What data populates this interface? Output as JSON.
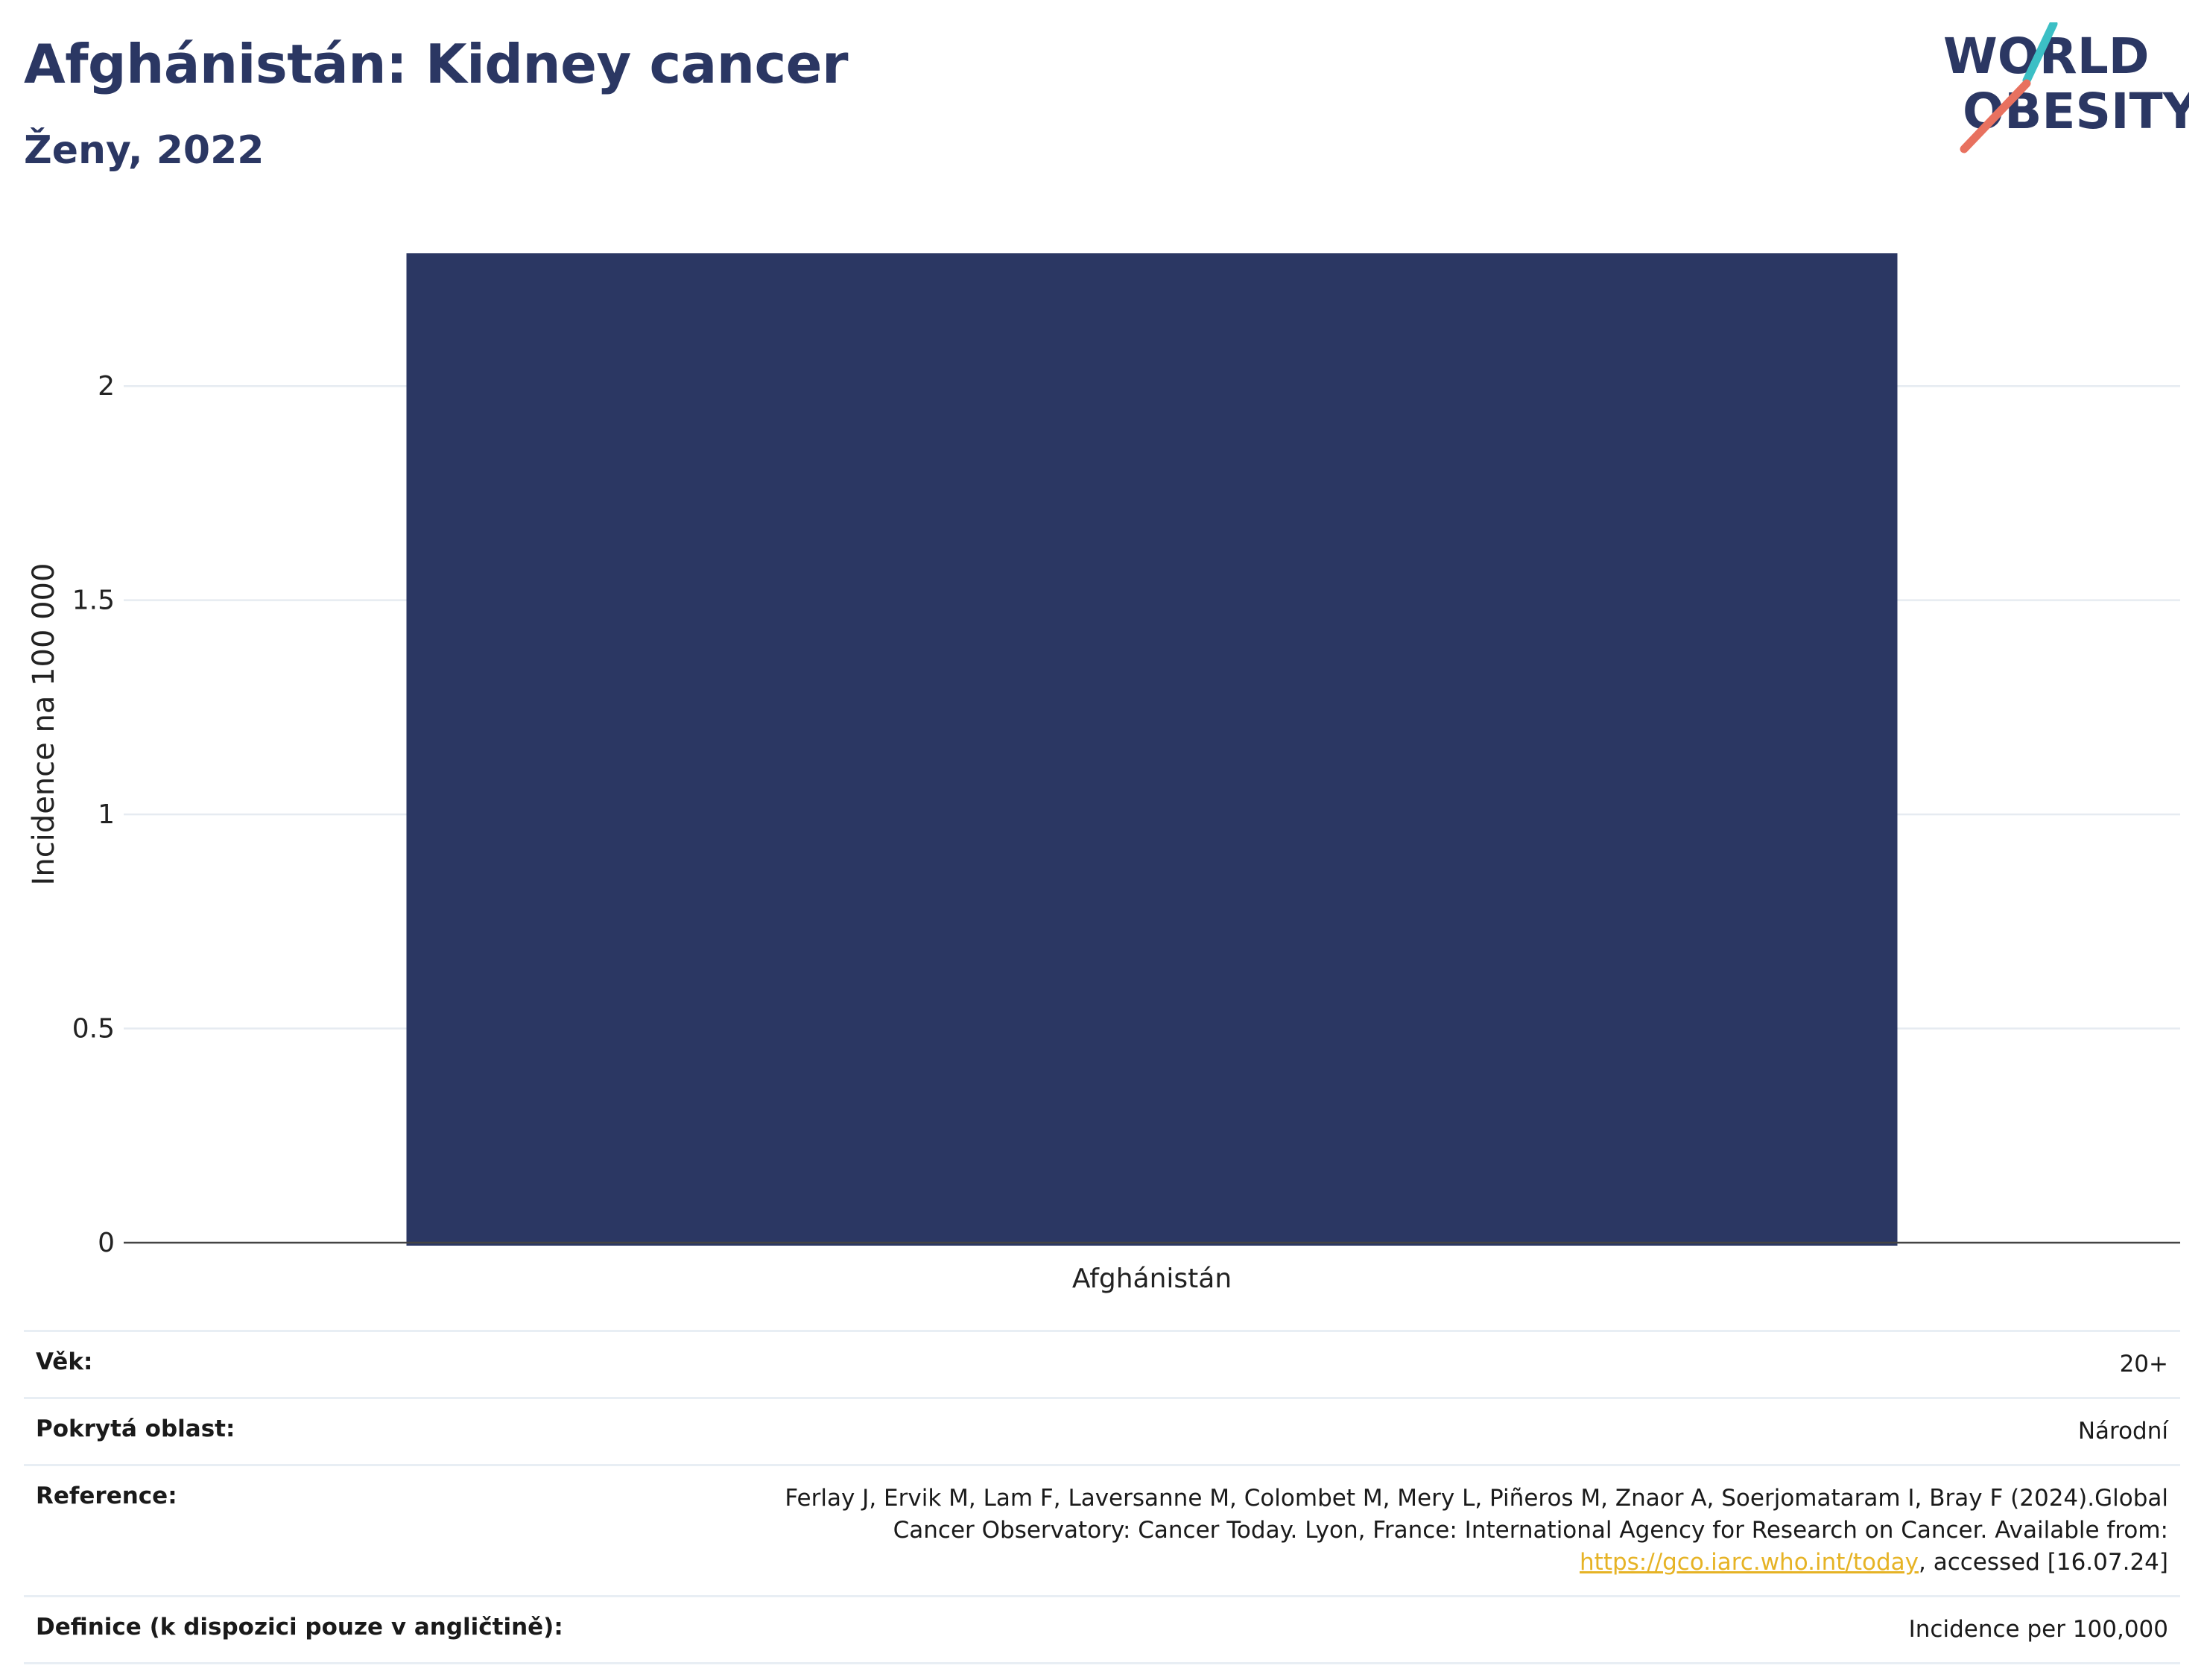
{
  "title": "Afghánistán: Kidney cancer",
  "subtitle": "Ženy, 2022",
  "logo": {
    "line1": "WORLD",
    "line2": "OBESITY",
    "colors": {
      "navy": "#2b3763",
      "teal": "#3cbfc5",
      "coral": "#e8715f"
    }
  },
  "chart_data": {
    "type": "bar",
    "categories": [
      "Afghánistán"
    ],
    "values": [
      2.31
    ],
    "xlabel": "",
    "ylabel": "Incidence na 100 000",
    "ylim": [
      0,
      2.31
    ],
    "yticks": [
      0,
      0.5,
      1,
      1.5,
      2
    ],
    "ytick_labels": [
      "0",
      "0.5",
      "1",
      "1.5",
      "2"
    ],
    "grid": true,
    "bar_color": "#2b3763"
  },
  "meta": {
    "age_label": "Věk:",
    "age_value": "20+",
    "coverage_label": "Pokrytá oblast:",
    "coverage_value": "Národní",
    "reference_label": "Reference:",
    "reference_text": "Ferlay J, Ervik M, Lam F, Laversanne M, Colombet M, Mery L, Piñeros M, Znaor A, Soerjomataram I, Bray F (2024).Global Cancer Observatory: Cancer Today. Lyon, France: International Agency for Research on Cancer. Available from: ",
    "reference_link": "https://gco.iarc.who.int/today",
    "reference_after": ", accessed [16.07.24]",
    "definition_label": "Definice (k dispozici pouze v angličtině):",
    "definition_value": "Incidence per 100,000"
  }
}
